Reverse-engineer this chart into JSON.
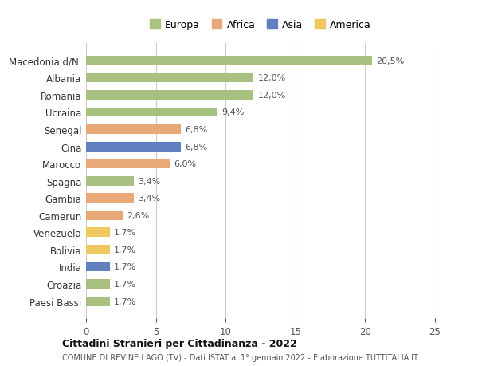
{
  "countries": [
    "Macedonia d/N.",
    "Albania",
    "Romania",
    "Ucraina",
    "Senegal",
    "Cina",
    "Marocco",
    "Spagna",
    "Gambia",
    "Camerun",
    "Venezuela",
    "Bolivia",
    "India",
    "Croazia",
    "Paesi Bassi"
  ],
  "values": [
    20.5,
    12.0,
    12.0,
    9.4,
    6.8,
    6.8,
    6.0,
    3.4,
    3.4,
    2.6,
    1.7,
    1.7,
    1.7,
    1.7,
    1.7
  ],
  "labels": [
    "20,5%",
    "12,0%",
    "12,0%",
    "9,4%",
    "6,8%",
    "6,8%",
    "6,0%",
    "3,4%",
    "3,4%",
    "2,6%",
    "1,7%",
    "1,7%",
    "1,7%",
    "1,7%",
    "1,7%"
  ],
  "colors": [
    "#a8c080",
    "#a8c080",
    "#a8c080",
    "#a8c080",
    "#e8a878",
    "#6080c0",
    "#e8a878",
    "#a8c080",
    "#e8a878",
    "#e8a878",
    "#f0c860",
    "#f0c860",
    "#6080c0",
    "#a8c080",
    "#a8c080"
  ],
  "legend_labels": [
    "Europa",
    "Africa",
    "Asia",
    "America"
  ],
  "legend_colors": [
    "#a8c080",
    "#e8a878",
    "#6080c0",
    "#f0c860"
  ],
  "xlim": [
    0,
    25
  ],
  "xticks": [
    0,
    5,
    10,
    15,
    20,
    25
  ],
  "title": "Cittadini Stranieri per Cittadinanza - 2022",
  "subtitle": "COMUNE DI REVINE LAGO (TV) - Dati ISTAT al 1° gennaio 2022 - Elaborazione TUTTITALIA.IT",
  "bg_color": "#ffffff",
  "grid_color": "#cccccc",
  "bar_height": 0.55
}
